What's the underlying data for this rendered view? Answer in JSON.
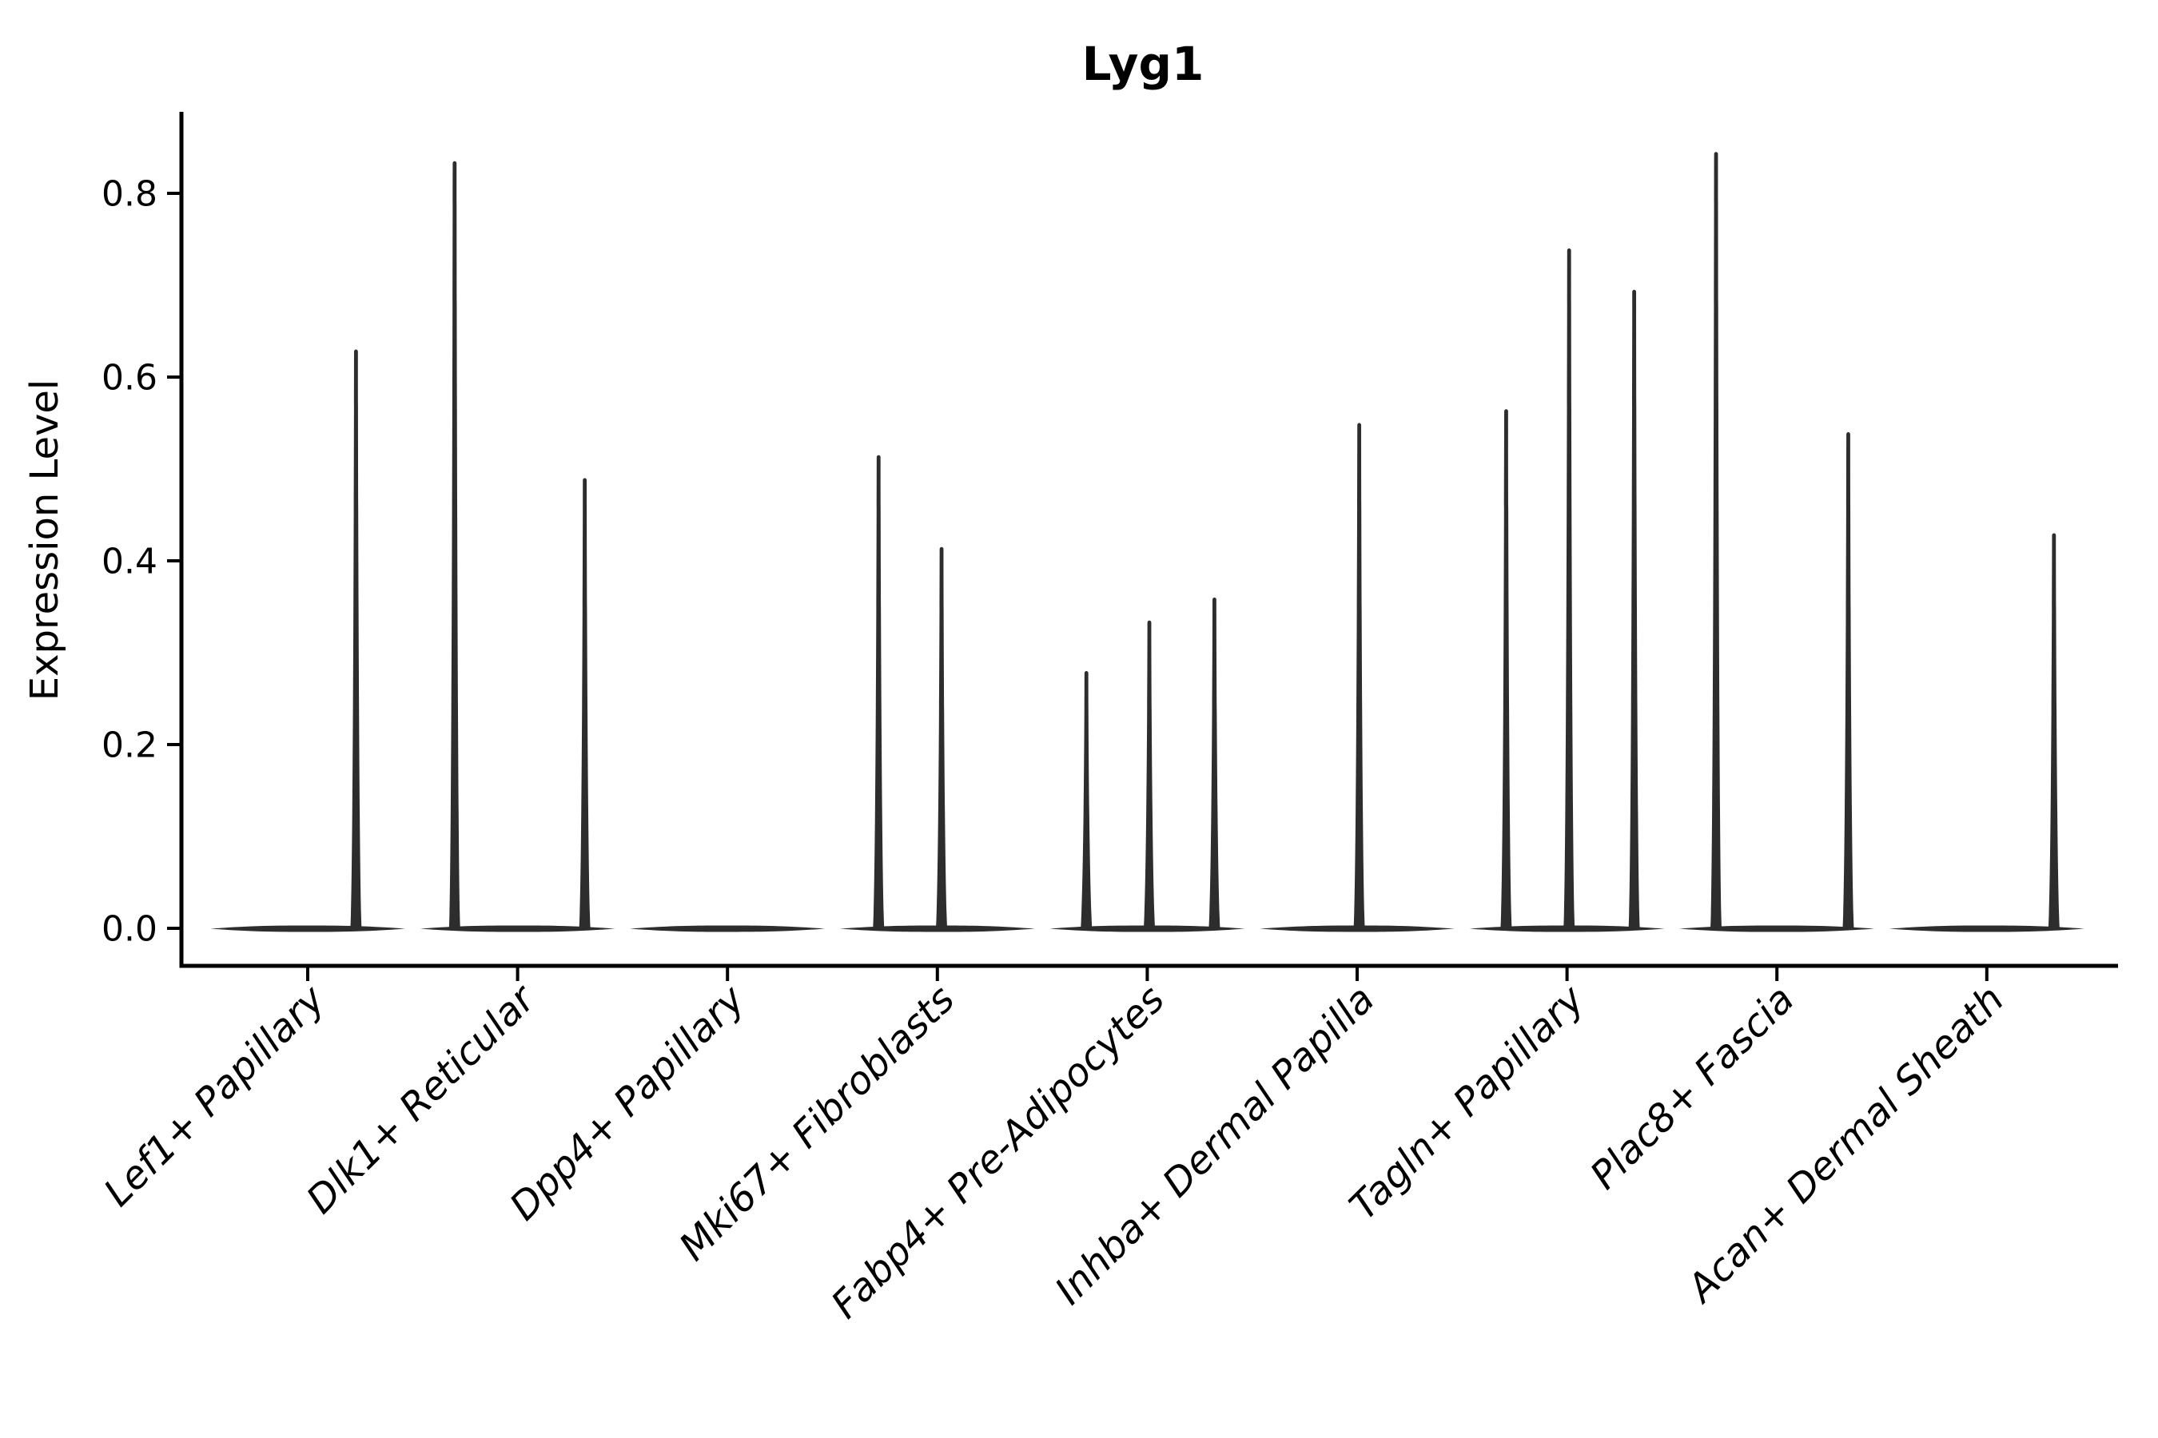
{
  "title": "Lyg1",
  "colors": {
    "background": "#ffffff",
    "violin": "#2d2d2d",
    "axis": "#000000",
    "text": "#000000"
  },
  "chart_data": {
    "type": "violin",
    "title": "Lyg1",
    "xlabel": "",
    "ylabel": "Expression Level",
    "ylim": [
      0,
      0.89
    ],
    "yticks": [
      0.0,
      0.2,
      0.4,
      0.6,
      0.8
    ],
    "ytick_labels": [
      "0.0",
      "0.2",
      "0.4",
      "0.6",
      "0.8"
    ],
    "grid": false,
    "legend_position": "none",
    "x_tick_label_rotation_deg": 45,
    "x_tick_label_style": "italic",
    "categories": [
      "Lef1+ Papillary",
      "Dlk1+ Reticular",
      "Dpp4+ Papillary",
      "Mki67+ Fibroblasts",
      "Fabp4+ Pre-Adipocytes",
      "Inhba+ Dermal Papilla",
      "Tagln+ Papillary",
      "Plac8+ Fascia",
      "Acan+ Dermal Sheath"
    ],
    "series": [
      {
        "category": "Lef1+ Papillary",
        "zero_bulk_value": 0.0,
        "spikes": [
          {
            "x_offset_frac": 0.23,
            "max_value": 0.63
          }
        ]
      },
      {
        "category": "Dlk1+ Reticular",
        "zero_bulk_value": 0.0,
        "spikes": [
          {
            "x_offset_frac": -0.3,
            "max_value": 0.835
          },
          {
            "x_offset_frac": 0.32,
            "max_value": 0.49
          }
        ]
      },
      {
        "category": "Dpp4+ Papillary",
        "zero_bulk_value": 0.0,
        "spikes": []
      },
      {
        "category": "Mki67+ Fibroblasts",
        "zero_bulk_value": 0.0,
        "spikes": [
          {
            "x_offset_frac": -0.28,
            "max_value": 0.515
          },
          {
            "x_offset_frac": 0.02,
            "max_value": 0.415
          }
        ]
      },
      {
        "category": "Fabp4+ Pre-Adipocytes",
        "zero_bulk_value": 0.0,
        "spikes": [
          {
            "x_offset_frac": -0.29,
            "max_value": 0.28
          },
          {
            "x_offset_frac": 0.01,
            "max_value": 0.335
          },
          {
            "x_offset_frac": 0.32,
            "max_value": 0.36
          }
        ]
      },
      {
        "category": "Inhba+ Dermal Papilla",
        "zero_bulk_value": 0.0,
        "spikes": [
          {
            "x_offset_frac": 0.01,
            "max_value": 0.55
          }
        ]
      },
      {
        "category": "Tagln+ Papillary",
        "zero_bulk_value": 0.0,
        "spikes": [
          {
            "x_offset_frac": -0.29,
            "max_value": 0.565
          },
          {
            "x_offset_frac": 0.01,
            "max_value": 0.74
          },
          {
            "x_offset_frac": 0.32,
            "max_value": 0.695
          }
        ]
      },
      {
        "category": "Plac8+ Fascia",
        "zero_bulk_value": 0.0,
        "spikes": [
          {
            "x_offset_frac": -0.29,
            "max_value": 0.845
          },
          {
            "x_offset_frac": 0.34,
            "max_value": 0.54
          }
        ]
      },
      {
        "category": "Acan+ Dermal Sheath",
        "zero_bulk_value": 0.0,
        "spikes": [
          {
            "x_offset_frac": 0.32,
            "max_value": 0.43
          }
        ]
      }
    ]
  }
}
